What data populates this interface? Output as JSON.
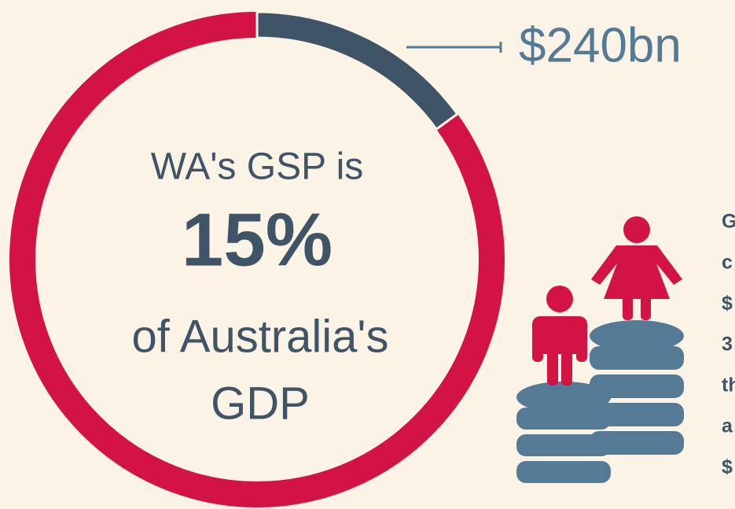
{
  "chart_data": {
    "type": "donut",
    "values": [
      15
    ],
    "value_labels": [
      "15%"
    ],
    "color": "#3f5466",
    "track_color": "#d31245",
    "center_text_top": "WA's GSP is",
    "center_text_bottom": [
      "of Australia's",
      "GDP"
    ],
    "annotation": "$240bn",
    "side_text": [
      "G",
      "c",
      "$",
      "3",
      "th",
      "a",
      "$"
    ]
  }
}
